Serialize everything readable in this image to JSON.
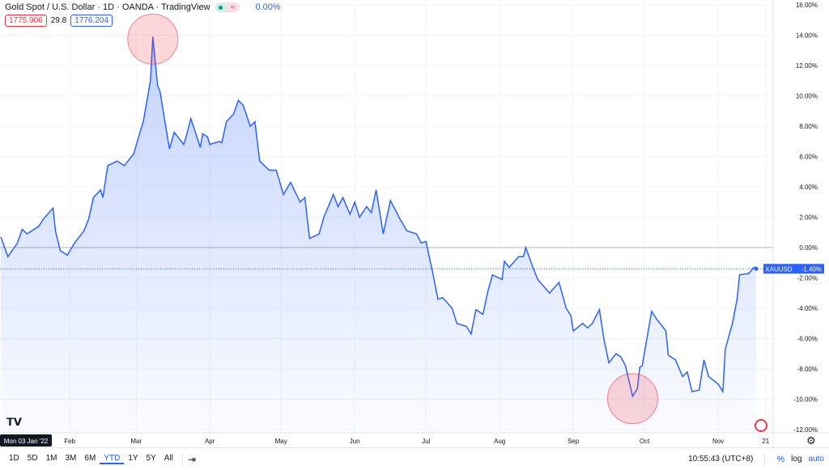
{
  "header": {
    "title": "Gold Spot / U.S. Dollar · 1D · OANDA · TradingView",
    "change": "0.00%",
    "market_status_icon": "market-open-dot",
    "bid": "1775.906",
    "spread": "29.8",
    "ask": "1776.204"
  },
  "colors": {
    "line": "#2962ff",
    "fill": "#2962ff",
    "zero_line": "#b2b5be",
    "annotation": "#f23645",
    "axis_text": "#131722"
  },
  "chart_data": {
    "type": "area",
    "title": "Gold Spot / U.S. Dollar · 1D · OANDA · TradingView",
    "symbol": "XAUUSD",
    "last_value_label": "-1.40%",
    "last_value": -1.4,
    "ylim": [
      -12.5,
      16.5
    ],
    "y_ticks": [
      "16.00%",
      "14.00%",
      "12.00%",
      "10.00%",
      "8.00%",
      "6.00%",
      "4.00%",
      "2.00%",
      "0.00%",
      "-2.00%",
      "-4.00%",
      "-6.00%",
      "-8.00%",
      "-10.00%",
      "-12.00%"
    ],
    "y_tick_values": [
      16,
      14,
      12,
      10,
      8,
      6,
      4,
      2,
      0,
      -2,
      -4,
      -6,
      -8,
      -10,
      -12
    ],
    "x_ticks": [
      {
        "label": "Feb",
        "date": "2022-02-01"
      },
      {
        "label": "Mar",
        "date": "2022-03-01"
      },
      {
        "label": "Apr",
        "date": "2022-04-01"
      },
      {
        "label": "May",
        "date": "2022-05-01"
      },
      {
        "label": "Jun",
        "date": "2022-06-01"
      },
      {
        "label": "Jul",
        "date": "2022-07-01"
      },
      {
        "label": "Aug",
        "date": "2022-08-01"
      },
      {
        "label": "Sep",
        "date": "2022-09-01"
      },
      {
        "label": "Oct",
        "date": "2022-10-01"
      },
      {
        "label": "Nov",
        "date": "2022-11-01"
      },
      {
        "label": "21",
        "date": "2022-11-21"
      }
    ],
    "cursor_date_label": "Mon 03 Jan '22",
    "grid": true,
    "ylabel_unit": "%",
    "series": [
      {
        "points": [
          [
            "2022-01-03",
            0.7
          ],
          [
            "2022-01-06",
            -0.6
          ],
          [
            "2022-01-10",
            0.3
          ],
          [
            "2022-01-12",
            1.2
          ],
          [
            "2022-01-14",
            0.9
          ],
          [
            "2022-01-19",
            1.4
          ],
          [
            "2022-01-21",
            1.9
          ],
          [
            "2022-01-25",
            2.6
          ],
          [
            "2022-01-26",
            1.1
          ],
          [
            "2022-01-28",
            -0.2
          ],
          [
            "2022-01-31",
            -0.5
          ],
          [
            "2022-02-03",
            0.3
          ],
          [
            "2022-02-07",
            1.1
          ],
          [
            "2022-02-09",
            1.9
          ],
          [
            "2022-02-11",
            3.3
          ],
          [
            "2022-02-14",
            3.8
          ],
          [
            "2022-02-15",
            3.3
          ],
          [
            "2022-02-17",
            5.4
          ],
          [
            "2022-02-21",
            5.7
          ],
          [
            "2022-02-24",
            5.4
          ],
          [
            "2022-02-28",
            6.2
          ],
          [
            "2022-03-02",
            7.3
          ],
          [
            "2022-03-04",
            8.3
          ],
          [
            "2022-03-07",
            11.0
          ],
          [
            "2022-03-08",
            13.9
          ],
          [
            "2022-03-10",
            10.7
          ],
          [
            "2022-03-11",
            10.3
          ],
          [
            "2022-03-15",
            6.5
          ],
          [
            "2022-03-17",
            7.6
          ],
          [
            "2022-03-21",
            6.8
          ],
          [
            "2022-03-22",
            7.3
          ],
          [
            "2022-03-24",
            8.5
          ],
          [
            "2022-03-28",
            6.6
          ],
          [
            "2022-03-29",
            7.5
          ],
          [
            "2022-03-31",
            7.3
          ],
          [
            "2022-04-01",
            6.8
          ],
          [
            "2022-04-05",
            7.0
          ],
          [
            "2022-04-06",
            6.9
          ],
          [
            "2022-04-08",
            8.3
          ],
          [
            "2022-04-11",
            8.8
          ],
          [
            "2022-04-13",
            9.7
          ],
          [
            "2022-04-15",
            9.4
          ],
          [
            "2022-04-18",
            8.0
          ],
          [
            "2022-04-20",
            8.3
          ],
          [
            "2022-04-22",
            5.7
          ],
          [
            "2022-04-26",
            5.1
          ],
          [
            "2022-04-29",
            5.1
          ],
          [
            "2022-05-02",
            3.5
          ],
          [
            "2022-05-05",
            4.3
          ],
          [
            "2022-05-09",
            3.0
          ],
          [
            "2022-05-11",
            3.3
          ],
          [
            "2022-05-13",
            0.6
          ],
          [
            "2022-05-17",
            0.9
          ],
          [
            "2022-05-19",
            2.0
          ],
          [
            "2022-05-23",
            3.5
          ],
          [
            "2022-05-25",
            2.7
          ],
          [
            "2022-05-27",
            3.3
          ],
          [
            "2022-05-30",
            2.2
          ],
          [
            "2022-06-01",
            3.0
          ],
          [
            "2022-06-03",
            2.0
          ],
          [
            "2022-06-06",
            2.7
          ],
          [
            "2022-06-08",
            2.3
          ],
          [
            "2022-06-10",
            3.8
          ],
          [
            "2022-06-13",
            0.9
          ],
          [
            "2022-06-16",
            3.1
          ],
          [
            "2022-06-20",
            1.9
          ],
          [
            "2022-06-23",
            1.1
          ],
          [
            "2022-06-27",
            0.9
          ],
          [
            "2022-06-29",
            0.3
          ],
          [
            "2022-07-01",
            0.4
          ],
          [
            "2022-07-04",
            -1.8
          ],
          [
            "2022-07-06",
            -3.4
          ],
          [
            "2022-07-08",
            -3.3
          ],
          [
            "2022-07-12",
            -4.0
          ],
          [
            "2022-07-14",
            -5.0
          ],
          [
            "2022-07-18",
            -5.2
          ],
          [
            "2022-07-20",
            -5.7
          ],
          [
            "2022-07-22",
            -4.1
          ],
          [
            "2022-07-25",
            -4.4
          ],
          [
            "2022-07-27",
            -2.9
          ],
          [
            "2022-07-29",
            -1.8
          ],
          [
            "2022-08-02",
            -2.1
          ],
          [
            "2022-08-03",
            -0.9
          ],
          [
            "2022-08-05",
            -1.3
          ],
          [
            "2022-08-09",
            -0.6
          ],
          [
            "2022-08-11",
            -0.6
          ],
          [
            "2022-08-12",
            0.0
          ],
          [
            "2022-08-15",
            -1.3
          ],
          [
            "2022-08-17",
            -2.1
          ],
          [
            "2022-08-22",
            -3.0
          ],
          [
            "2022-08-26",
            -2.3
          ],
          [
            "2022-08-29",
            -4.0
          ],
          [
            "2022-08-31",
            -4.5
          ],
          [
            "2022-09-01",
            -5.5
          ],
          [
            "2022-09-05",
            -5.0
          ],
          [
            "2022-09-07",
            -5.3
          ],
          [
            "2022-09-09",
            -5.0
          ],
          [
            "2022-09-12",
            -4.1
          ],
          [
            "2022-09-14",
            -6.1
          ],
          [
            "2022-09-16",
            -7.6
          ],
          [
            "2022-09-19",
            -7.0
          ],
          [
            "2022-09-21",
            -7.2
          ],
          [
            "2022-09-23",
            -7.8
          ],
          [
            "2022-09-26",
            -9.8
          ],
          [
            "2022-09-28",
            -9.3
          ],
          [
            "2022-09-29",
            -7.9
          ],
          [
            "2022-09-30",
            -7.8
          ],
          [
            "2022-10-04",
            -4.2
          ],
          [
            "2022-10-06",
            -4.7
          ],
          [
            "2022-10-10",
            -5.5
          ],
          [
            "2022-10-11",
            -7.1
          ],
          [
            "2022-10-14",
            -7.4
          ],
          [
            "2022-10-17",
            -8.5
          ],
          [
            "2022-10-19",
            -8.2
          ],
          [
            "2022-10-21",
            -9.5
          ],
          [
            "2022-10-24",
            -9.4
          ],
          [
            "2022-10-26",
            -7.4
          ],
          [
            "2022-10-28",
            -8.5
          ],
          [
            "2022-11-01",
            -9.0
          ],
          [
            "2022-11-03",
            -9.5
          ],
          [
            "2022-11-04",
            -6.7
          ],
          [
            "2022-11-07",
            -5.0
          ],
          [
            "2022-11-09",
            -3.4
          ],
          [
            "2022-11-10",
            -1.8
          ],
          [
            "2022-11-14",
            -1.7
          ],
          [
            "2022-11-16",
            -1.3
          ],
          [
            "2022-11-17",
            -1.4
          ]
        ]
      }
    ],
    "annotations": [
      {
        "type": "circle",
        "date": "2022-03-08",
        "value": 13.9
      },
      {
        "type": "circle",
        "date": "2022-09-26",
        "value": -9.8
      }
    ]
  },
  "toolbar": {
    "ranges": [
      "1D",
      "5D",
      "1M",
      "3M",
      "6M",
      "YTD",
      "1Y",
      "5Y",
      "All"
    ],
    "active_range": "YTD",
    "time": "10:55:43 (UTC+8)",
    "percent": "%",
    "log": "log",
    "auto": "auto"
  },
  "logo": "TV"
}
